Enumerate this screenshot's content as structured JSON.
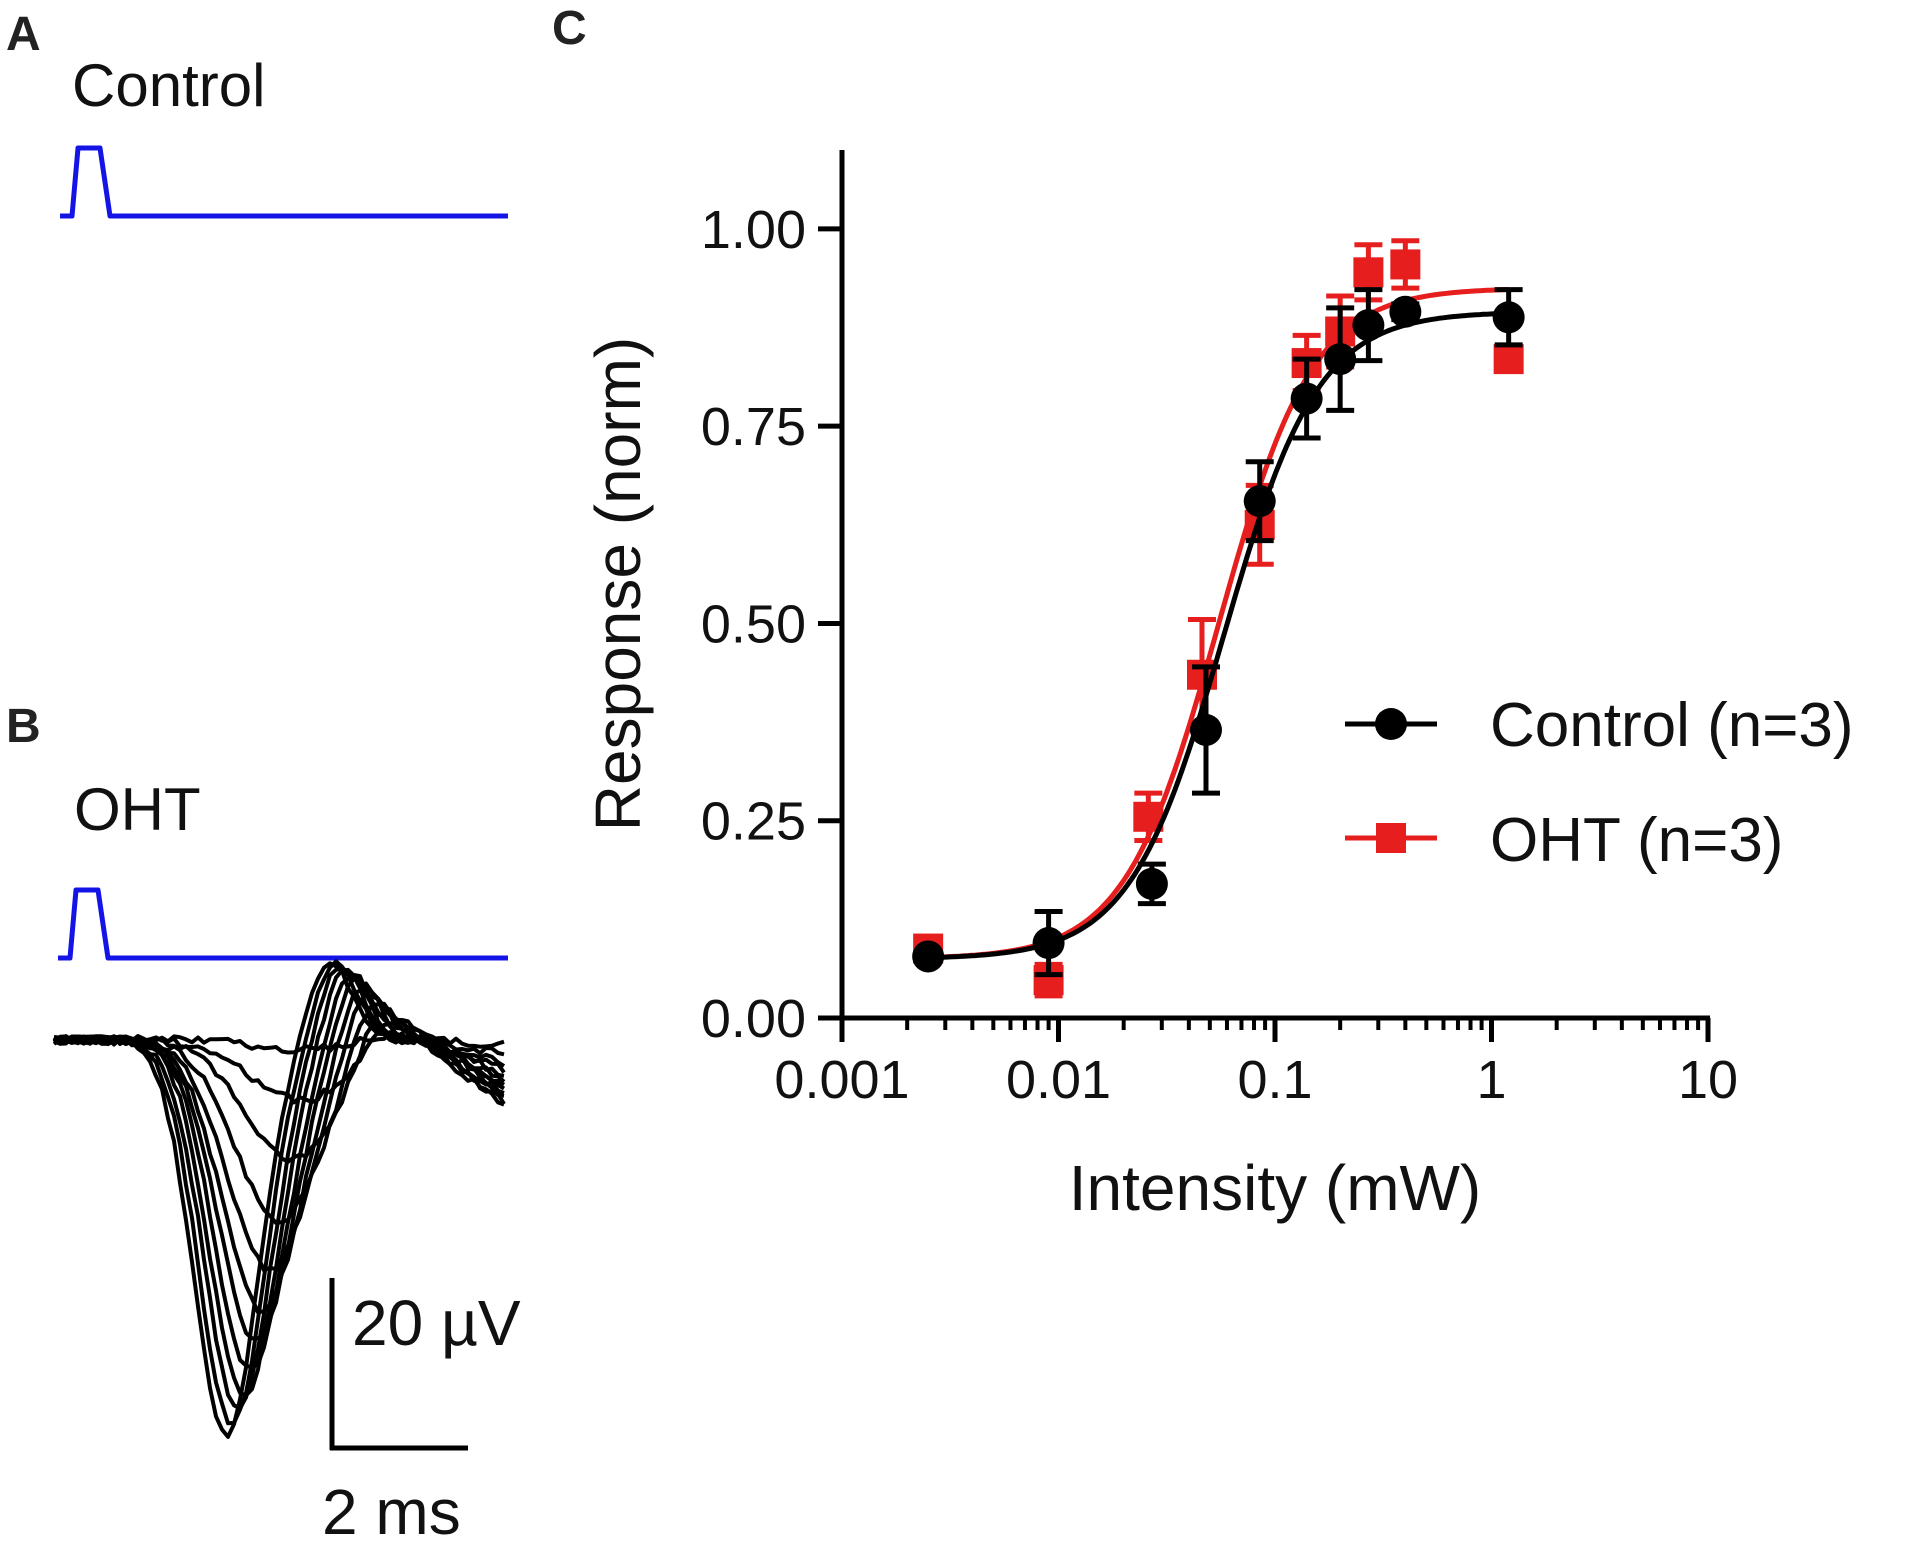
{
  "panels": {
    "a": {
      "letter": "A",
      "label": "Control"
    },
    "b": {
      "letter": "B",
      "label": "OHT"
    },
    "c": {
      "letter": "C"
    }
  },
  "scale_bar": {
    "voltage": "20 µV",
    "time": "2 ms"
  },
  "colors": {
    "stimulus": "#1414e6",
    "control": "#000000",
    "oht": "#e61e1e"
  },
  "chart_data": {
    "type": "scatter",
    "xscale": "log",
    "xlabel": "Intensity (mW)",
    "ylabel": "Response (norm)",
    "xlim": [
      0.001,
      10
    ],
    "ylim": [
      0,
      1.1
    ],
    "xticks": [
      {
        "value": 0.001,
        "label": "0.001"
      },
      {
        "value": 0.01,
        "label": "0.01"
      },
      {
        "value": 0.1,
        "label": "0.1"
      },
      {
        "value": 1,
        "label": "1"
      },
      {
        "value": 10,
        "label": "10"
      }
    ],
    "yticks": [
      {
        "value": 0,
        "label": "0.00"
      },
      {
        "value": 0.25,
        "label": "0.25"
      },
      {
        "value": 0.5,
        "label": "0.50"
      },
      {
        "value": 0.75,
        "label": "0.75"
      },
      {
        "value": 1,
        "label": "1.00"
      }
    ],
    "legend_position": "right",
    "series": [
      {
        "name": "Control",
        "legend": "Control  (n=3)",
        "color": "#000000",
        "marker": "circle",
        "x": [
          0.0025,
          0.009,
          0.027,
          0.048,
          0.085,
          0.14,
          0.2,
          0.27,
          0.4,
          1.2
        ],
        "y": [
          0.078,
          0.095,
          0.17,
          0.365,
          0.655,
          0.785,
          0.835,
          0.878,
          0.895,
          0.888
        ],
        "err": [
          0.005,
          0.04,
          0.025,
          0.08,
          0.05,
          0.05,
          0.065,
          0.045,
          0.01,
          0.035
        ],
        "fit": {
          "bottom": 0.075,
          "top": 0.895,
          "ec50": 0.058,
          "hill": 2.0
        }
      },
      {
        "name": "OHT",
        "legend": "OHT (n=3)",
        "color": "#e61e1e",
        "marker": "square",
        "x": [
          0.0025,
          0.009,
          0.026,
          0.046,
          0.085,
          0.14,
          0.2,
          0.27,
          0.4,
          1.2
        ],
        "y": [
          0.088,
          0.048,
          0.255,
          0.435,
          0.625,
          0.83,
          0.87,
          0.945,
          0.955,
          0.835
        ],
        "err": [
          0.01,
          0.02,
          0.03,
          0.07,
          0.05,
          0.035,
          0.045,
          0.035,
          0.03,
          0.015
        ],
        "fit": {
          "bottom": 0.075,
          "top": 0.925,
          "ec50": 0.055,
          "hill": 2.0
        }
      }
    ]
  }
}
